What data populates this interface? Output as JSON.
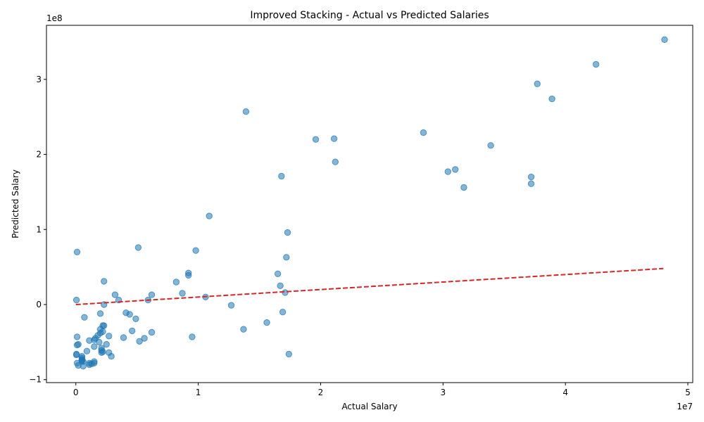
{
  "chart_data": {
    "type": "scatter",
    "title": "Improved Stacking - Actual vs Predicted Salaries",
    "xlabel": "Actual Salary",
    "ylabel": "Predicted Salary",
    "x_offset_label": "1e7",
    "y_offset_label": "1e8",
    "xlim": [
      -2400000,
      50400000
    ],
    "ylim": [
      -104000000,
      372000000
    ],
    "x_ticks": [
      0,
      10000000,
      20000000,
      30000000,
      40000000,
      50000000
    ],
    "x_tick_labels": [
      "0",
      "1",
      "2",
      "3",
      "4",
      "5"
    ],
    "y_ticks": [
      -100000000,
      0,
      100000000,
      200000000,
      300000000
    ],
    "y_tick_labels": [
      "−1",
      "0",
      "1",
      "2",
      "3"
    ],
    "grid": false,
    "point_color": "#1f77b4",
    "line_color": "#d62728",
    "points": [
      [
        48100000,
        353000000
      ],
      [
        42500000,
        320000000
      ],
      [
        37700000,
        294000000
      ],
      [
        38900000,
        274000000
      ],
      [
        13900000,
        257000000
      ],
      [
        28400000,
        229000000
      ],
      [
        21100000,
        221000000
      ],
      [
        19600000,
        220000000
      ],
      [
        33900000,
        212000000
      ],
      [
        21200000,
        190000000
      ],
      [
        31000000,
        180000000
      ],
      [
        30400000,
        177000000
      ],
      [
        16800000,
        171000000
      ],
      [
        37200000,
        170000000
      ],
      [
        37200000,
        161000000
      ],
      [
        31700000,
        156000000
      ],
      [
        10900000,
        118000000
      ],
      [
        17300000,
        96000000
      ],
      [
        5100000,
        76000000
      ],
      [
        9800000,
        72000000
      ],
      [
        100000,
        70000000
      ],
      [
        17200000,
        63000000
      ],
      [
        9200000,
        42000000
      ],
      [
        16500000,
        41000000
      ],
      [
        9200000,
        39000000
      ],
      [
        2300000,
        31000000
      ],
      [
        8200000,
        30000000
      ],
      [
        16700000,
        25000000
      ],
      [
        17100000,
        16000000
      ],
      [
        8700000,
        15000000
      ],
      [
        3200000,
        13000000
      ],
      [
        6200000,
        13000000
      ],
      [
        10600000,
        10000000
      ],
      [
        3500000,
        6000000
      ],
      [
        5900000,
        6000000
      ],
      [
        50000,
        6000000
      ],
      [
        2300000,
        0
      ],
      [
        12700000,
        -1000000
      ],
      [
        16900000,
        -10000000
      ],
      [
        4100000,
        -11000000
      ],
      [
        2000000,
        -12000000
      ],
      [
        4400000,
        -13000000
      ],
      [
        700000,
        -17000000
      ],
      [
        4900000,
        -19000000
      ],
      [
        15600000,
        -24000000
      ],
      [
        2200000,
        -28000000
      ],
      [
        2300000,
        -28000000
      ],
      [
        2000000,
        -33000000
      ],
      [
        13700000,
        -33000000
      ],
      [
        4600000,
        -35000000
      ],
      [
        2200000,
        -36000000
      ],
      [
        6200000,
        -37000000
      ],
      [
        2000000,
        -38000000
      ],
      [
        1800000,
        -41000000
      ],
      [
        2700000,
        -42000000
      ],
      [
        100000,
        -43000000
      ],
      [
        9500000,
        -43000000
      ],
      [
        3900000,
        -44000000
      ],
      [
        1600000,
        -45000000
      ],
      [
        5600000,
        -45000000
      ],
      [
        1500000,
        -47000000
      ],
      [
        1100000,
        -48000000
      ],
      [
        5200000,
        -49000000
      ],
      [
        1900000,
        -50000000
      ],
      [
        2500000,
        -53000000
      ],
      [
        200000,
        -53000000
      ],
      [
        100000,
        -54000000
      ],
      [
        1500000,
        -56000000
      ],
      [
        2100000,
        -58000000
      ],
      [
        2100000,
        -61000000
      ],
      [
        900000,
        -62000000
      ],
      [
        2200000,
        -63000000
      ],
      [
        2700000,
        -64000000
      ],
      [
        2100000,
        -64000000
      ],
      [
        17400000,
        -66000000
      ],
      [
        50000,
        -66000000
      ],
      [
        50000,
        -67000000
      ],
      [
        2900000,
        -69000000
      ],
      [
        500000,
        -69000000
      ],
      [
        500000,
        -71000000
      ],
      [
        500000,
        -73000000
      ],
      [
        500000,
        -74000000
      ],
      [
        500000,
        -75000000
      ],
      [
        600000,
        -76000000
      ],
      [
        1500000,
        -76000000
      ],
      [
        1500000,
        -78000000
      ],
      [
        1100000,
        -78000000
      ],
      [
        100000,
        -78000000
      ],
      [
        1300000,
        -79000000
      ],
      [
        1100000,
        -80000000
      ],
      [
        200000,
        -81000000
      ],
      [
        600000,
        -82000000
      ]
    ],
    "trend_line": {
      "x": [
        0,
        48000000
      ],
      "y": [
        0,
        48000000
      ]
    }
  }
}
